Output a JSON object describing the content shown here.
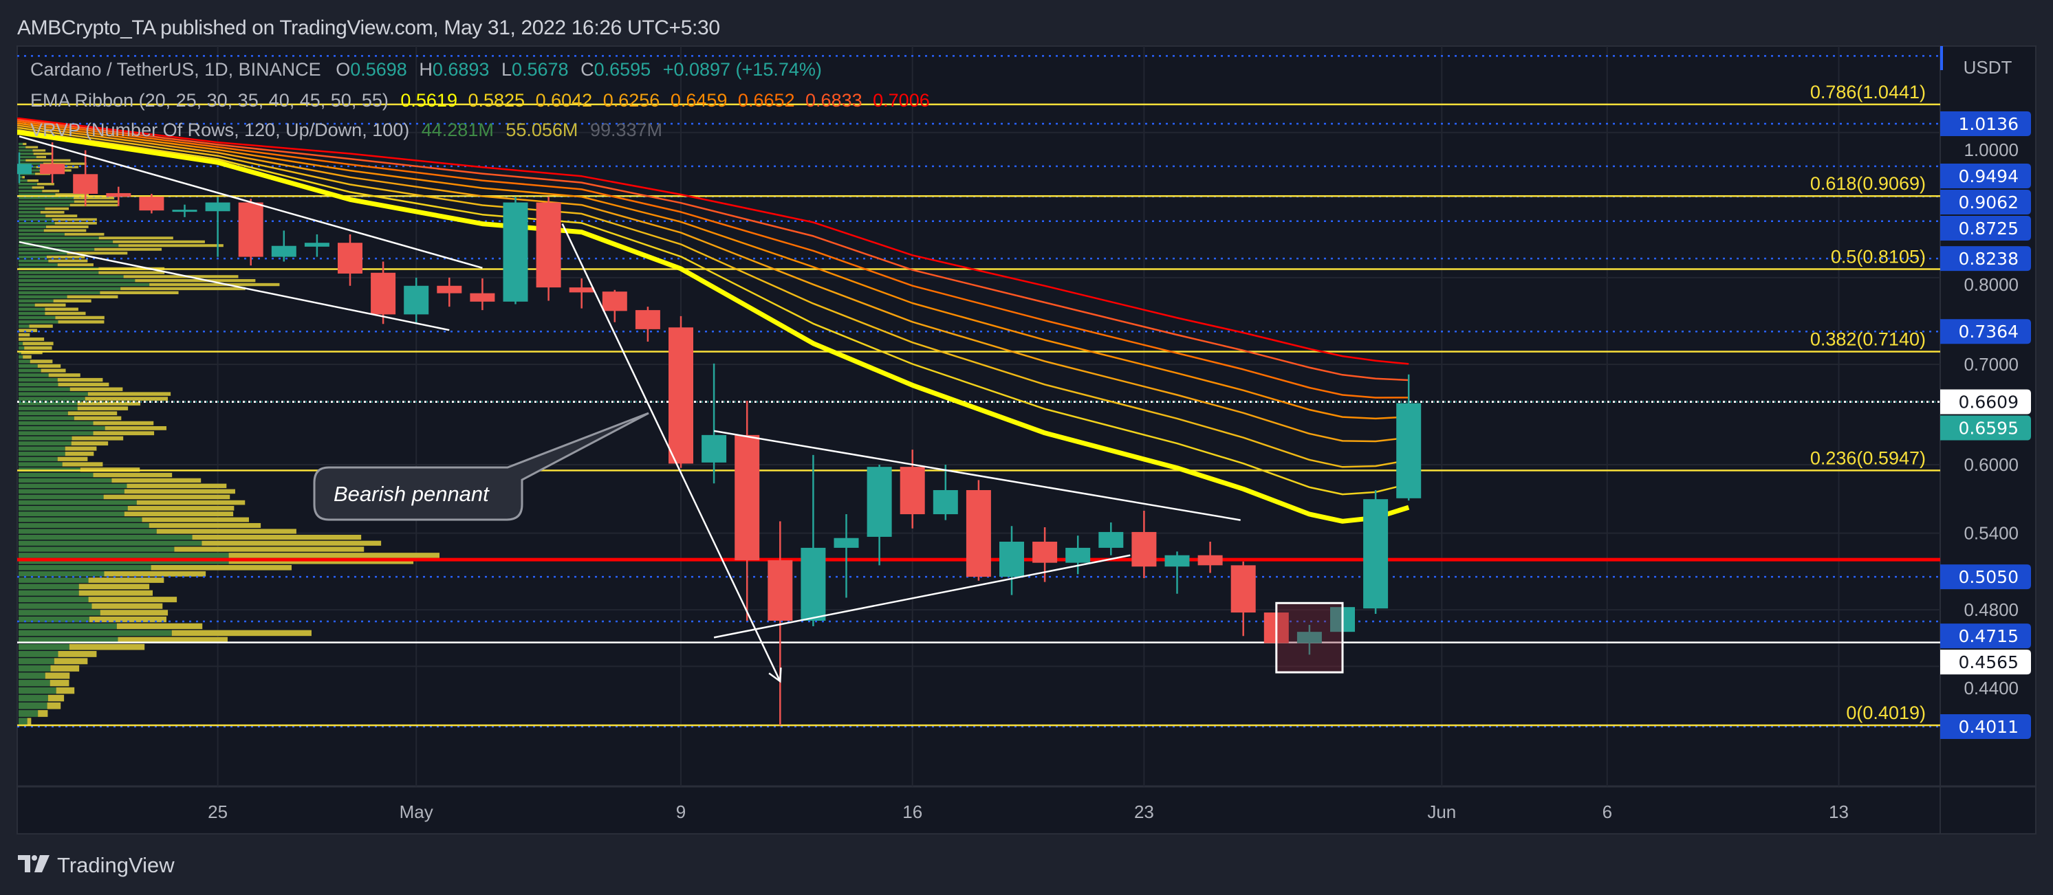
{
  "header": {
    "title": "AMBCrypto_TA published on TradingView.com, May 31, 2022 16:26 UTC+5:30"
  },
  "legend": {
    "symbol": "Cardano / TetherUS, 1D, BINANCE",
    "ohlc": [
      {
        "label": "O",
        "value": "0.5698"
      },
      {
        "label": "H",
        "value": "0.6893"
      },
      {
        "label": "L",
        "value": "0.5678"
      },
      {
        "label": "C",
        "value": "0.6595"
      }
    ],
    "change": "+0.0897 (+15.74%)",
    "ema_title": "EMA Ribbon (20, 25, 30, 35, 40, 45, 50, 55)",
    "ema_values": [
      "0.5619",
      "0.5825",
      "0.6042",
      "0.6256",
      "0.6459",
      "0.6652",
      "0.6833",
      "0.7006"
    ],
    "vrvp_title": "VRVP (Number Of Rows, 120, Up/Down, 100)",
    "vrvp_values": [
      "44.281M",
      "55.056M",
      "99.337M"
    ],
    "vrvp_colors": [
      "#3f8a46",
      "#c9b93c",
      "#5d606b"
    ]
  },
  "price_axis": {
    "currency": "USDT",
    "ticks": [
      "1.0000",
      "0.8000",
      "0.7000",
      "0.6000",
      "0.5400",
      "0.4800",
      "0.4400"
    ],
    "labels": [
      {
        "value": "1.0136",
        "bg": "#1a4bd0",
        "fg": "#ffffff"
      },
      {
        "value": "0.9494",
        "bg": "#1a4bd0",
        "fg": "#ffffff"
      },
      {
        "value": "0.9062",
        "bg": "#1a4bd0",
        "fg": "#ffffff"
      },
      {
        "value": "0.8725",
        "bg": "#1a4bd0",
        "fg": "#ffffff"
      },
      {
        "value": "0.8238",
        "bg": "#1a4bd0",
        "fg": "#ffffff"
      },
      {
        "value": "0.7364",
        "bg": "#1a4bd0",
        "fg": "#ffffff"
      },
      {
        "value": "0.6609",
        "bg": "#ffffff",
        "fg": "#131722"
      },
      {
        "value": "0.6595",
        "bg": "#26a69a",
        "fg": "#ffffff"
      },
      {
        "value": "0.5050",
        "bg": "#1a4bd0",
        "fg": "#ffffff"
      },
      {
        "value": "0.4715",
        "bg": "#1a4bd0",
        "fg": "#ffffff"
      },
      {
        "value": "0.4565",
        "bg": "#ffffff",
        "fg": "#131722"
      },
      {
        "value": "0.4011",
        "bg": "#1a4bd0",
        "fg": "#ffffff"
      }
    ]
  },
  "time_axis": {
    "labels": [
      {
        "text": "25",
        "date": "2022-04-25"
      },
      {
        "text": "May",
        "date": "2022-05-01"
      },
      {
        "text": "9",
        "date": "2022-05-09"
      },
      {
        "text": "16",
        "date": "2022-05-16"
      },
      {
        "text": "23",
        "date": "2022-05-23"
      },
      {
        "text": "Jun",
        "date": "2022-06-01"
      },
      {
        "text": "6",
        "date": "2022-06-06"
      },
      {
        "text": "13",
        "date": "2022-06-13"
      }
    ]
  },
  "footer": {
    "logo_text": "TradingView"
  },
  "colors": {
    "up": "#26a69a",
    "down": "#ef5350",
    "fib": "#f9e03a",
    "level": "#2962ff",
    "support_red": "#ff0000",
    "support_white": "#ffffff",
    "background": "#131722"
  },
  "chart_data": {
    "type": "candlestick",
    "title": "Cardano / TetherUS, 1D, BINANCE",
    "y_scale": "log",
    "ylim": [
      0.39,
      1.16
    ],
    "xlim": [
      "2022-04-18",
      "2022-06-16"
    ],
    "grid": true,
    "candles": [
      {
        "d": "2022-04-19",
        "o": 0.938,
        "h": 0.97,
        "l": 0.925,
        "c": 0.953
      },
      {
        "d": "2022-04-20",
        "o": 0.953,
        "h": 0.985,
        "l": 0.925,
        "c": 0.938
      },
      {
        "d": "2022-04-21",
        "o": 0.938,
        "h": 0.973,
        "l": 0.893,
        "c": 0.91
      },
      {
        "d": "2022-04-22",
        "o": 0.911,
        "h": 0.92,
        "l": 0.893,
        "c": 0.906
      },
      {
        "d": "2022-04-23",
        "o": 0.906,
        "h": 0.91,
        "l": 0.883,
        "c": 0.887
      },
      {
        "d": "2022-04-24",
        "o": 0.886,
        "h": 0.895,
        "l": 0.878,
        "c": 0.888
      },
      {
        "d": "2022-04-25",
        "o": 0.886,
        "h": 0.905,
        "l": 0.826,
        "c": 0.898
      },
      {
        "d": "2022-04-26",
        "o": 0.898,
        "h": 0.903,
        "l": 0.815,
        "c": 0.826
      },
      {
        "d": "2022-04-27",
        "o": 0.826,
        "h": 0.86,
        "l": 0.82,
        "c": 0.84
      },
      {
        "d": "2022-04-28",
        "o": 0.839,
        "h": 0.855,
        "l": 0.826,
        "c": 0.844
      },
      {
        "d": "2022-04-29",
        "o": 0.844,
        "h": 0.855,
        "l": 0.79,
        "c": 0.805
      },
      {
        "d": "2022-04-30",
        "o": 0.806,
        "h": 0.82,
        "l": 0.745,
        "c": 0.756
      },
      {
        "d": "2022-05-01",
        "o": 0.756,
        "h": 0.8,
        "l": 0.745,
        "c": 0.79
      },
      {
        "d": "2022-05-02",
        "o": 0.79,
        "h": 0.8,
        "l": 0.765,
        "c": 0.781
      },
      {
        "d": "2022-05-03",
        "o": 0.781,
        "h": 0.799,
        "l": 0.761,
        "c": 0.771
      },
      {
        "d": "2022-05-04",
        "o": 0.771,
        "h": 0.906,
        "l": 0.768,
        "c": 0.898
      },
      {
        "d": "2022-05-05",
        "o": 0.898,
        "h": 0.906,
        "l": 0.772,
        "c": 0.788
      },
      {
        "d": "2022-05-06",
        "o": 0.788,
        "h": 0.799,
        "l": 0.763,
        "c": 0.782
      },
      {
        "d": "2022-05-07",
        "o": 0.783,
        "h": 0.785,
        "l": 0.747,
        "c": 0.76
      },
      {
        "d": "2022-05-08",
        "o": 0.761,
        "h": 0.765,
        "l": 0.725,
        "c": 0.739
      },
      {
        "d": "2022-05-09",
        "o": 0.741,
        "h": 0.754,
        "l": 0.597,
        "c": 0.601
      },
      {
        "d": "2022-05-10",
        "o": 0.602,
        "h": 0.701,
        "l": 0.583,
        "c": 0.628
      },
      {
        "d": "2022-05-11",
        "o": 0.628,
        "h": 0.662,
        "l": 0.472,
        "c": 0.518
      },
      {
        "d": "2022-05-12",
        "o": 0.518,
        "h": 0.55,
        "l": 0.402,
        "c": 0.472
      },
      {
        "d": "2022-05-13",
        "o": 0.472,
        "h": 0.609,
        "l": 0.468,
        "c": 0.528
      },
      {
        "d": "2022-05-14",
        "o": 0.528,
        "h": 0.556,
        "l": 0.489,
        "c": 0.536
      },
      {
        "d": "2022-05-15",
        "o": 0.537,
        "h": 0.6,
        "l": 0.514,
        "c": 0.598
      },
      {
        "d": "2022-05-16",
        "o": 0.598,
        "h": 0.614,
        "l": 0.544,
        "c": 0.556
      },
      {
        "d": "2022-05-17",
        "o": 0.556,
        "h": 0.6,
        "l": 0.551,
        "c": 0.577
      },
      {
        "d": "2022-05-18",
        "o": 0.577,
        "h": 0.586,
        "l": 0.502,
        "c": 0.505
      },
      {
        "d": "2022-05-19",
        "o": 0.505,
        "h": 0.546,
        "l": 0.491,
        "c": 0.533
      },
      {
        "d": "2022-05-20",
        "o": 0.533,
        "h": 0.545,
        "l": 0.501,
        "c": 0.516
      },
      {
        "d": "2022-05-21",
        "o": 0.516,
        "h": 0.538,
        "l": 0.507,
        "c": 0.528
      },
      {
        "d": "2022-05-22",
        "o": 0.528,
        "h": 0.549,
        "l": 0.522,
        "c": 0.541
      },
      {
        "d": "2022-05-23",
        "o": 0.541,
        "h": 0.559,
        "l": 0.504,
        "c": 0.513
      },
      {
        "d": "2022-05-24",
        "o": 0.513,
        "h": 0.525,
        "l": 0.492,
        "c": 0.522
      },
      {
        "d": "2022-05-25",
        "o": 0.522,
        "h": 0.533,
        "l": 0.508,
        "c": 0.514
      },
      {
        "d": "2022-05-26",
        "o": 0.514,
        "h": 0.517,
        "l": 0.461,
        "c": 0.478
      },
      {
        "d": "2022-05-27",
        "o": 0.478,
        "h": 0.483,
        "l": 0.445,
        "c": 0.456
      },
      {
        "d": "2022-05-28",
        "o": 0.456,
        "h": 0.469,
        "l": 0.448,
        "c": 0.464
      },
      {
        "d": "2022-05-29",
        "o": 0.464,
        "h": 0.482,
        "l": 0.456,
        "c": 0.482
      },
      {
        "d": "2022-05-30",
        "o": 0.481,
        "h": 0.577,
        "l": 0.477,
        "c": 0.569
      },
      {
        "d": "2022-05-31",
        "o": 0.5698,
        "h": 0.6893,
        "l": 0.5678,
        "c": 0.6595
      }
    ],
    "ema_ribbon": {
      "periods": [
        20,
        25,
        30,
        35,
        40,
        45,
        50,
        55
      ],
      "last_values": [
        0.5619,
        0.5825,
        0.6042,
        0.6256,
        0.6459,
        0.6652,
        0.6833,
        0.7006
      ],
      "colors": [
        "#ffff00",
        "#f2d21c",
        "#f0b916",
        "#f5a10e",
        "#fb8c00",
        "#ff6f00",
        "#ff5722",
        "#ff0000"
      ],
      "sample_dates": [
        "2022-04-19",
        "2022-04-25",
        "2022-04-29",
        "2022-05-03",
        "2022-05-06",
        "2022-05-09",
        "2022-05-13",
        "2022-05-16",
        "2022-05-20",
        "2022-05-24",
        "2022-05-26",
        "2022-05-28",
        "2022-05-29",
        "2022-05-30",
        "2022-05-31"
      ],
      "ema20": [
        1.0,
        0.955,
        0.902,
        0.869,
        0.858,
        0.811,
        0.723,
        0.678,
        0.63,
        0.597,
        0.578,
        0.556,
        0.55,
        0.553,
        0.5619
      ],
      "ema55": [
        1.022,
        0.985,
        0.968,
        0.948,
        0.935,
        0.909,
        0.871,
        0.828,
        0.79,
        0.752,
        0.735,
        0.717,
        0.709,
        0.704,
        0.7006
      ]
    },
    "volume_profile": {
      "rows": 120,
      "price_range": [
        0.4019,
        0.985
      ],
      "up_color": "#38773e",
      "down_color": "#c3b437",
      "up": [
        3.1,
        6.9,
        10.2,
        10.5,
        13.4,
        11.2,
        9.5,
        11.4,
        12.7,
        14.1,
        18.1,
        35.4,
        54.6,
        35,
        25.2,
        29.1,
        26.1,
        24.9,
        21.5,
        21.5,
        24.9,
        30.5,
        47.2,
        74.9,
        74.9,
        55.5,
        65.3,
        61.9,
        49.2,
        46.5,
        44,
        37.7,
        38.9,
        42.1,
        30.3,
        37.7,
        38.6,
        33.2,
        26.6,
        22,
        15.6,
        13.9,
        16.6,
        16.6,
        18.8,
        19,
        26.6,
        30.8,
        26.6,
        19.8,
        17.6,
        21,
        21,
        23.7,
        24.7,
        18.3,
        14.1,
        13.9,
        10.7,
        8,
        6.8,
        4.1,
        1.5,
        0.9,
        2,
        1.5,
        0,
        0,
        0,
        3.8,
        14.1,
        13.1,
        9.4,
        9.4,
        5.8,
        12.4,
        17.3,
        29,
        36.3,
        46.6,
        41.5,
        37.4,
        28.5,
        28.5,
        13.9,
        10.6,
        10,
        17.3,
        27,
        35.6,
        33.6,
        28.6,
        16.4,
        9,
        9.8,
        12.9,
        11.9,
        9.6,
        7.8,
        9.4,
        18.3,
        19.8,
        19.6,
        13.1,
        8.4,
        4.8,
        6.6,
        3.1,
        1.3,
        5.9,
        7.5,
        6.3,
        8.8,
        2.5,
        6.3,
        5.3,
        5,
        2.5,
        1.5
      ],
      "down": [
        1.4,
        3.5,
        4.8,
        5.7,
        6.5,
        6.8,
        8.7,
        10.2,
        11.9,
        13.7,
        26.8,
        39.1,
        49.8,
        30.5,
        27.5,
        24.1,
        25.2,
        31.5,
        26.3,
        25.1,
        26.9,
        36.2,
        50.1,
        65.8,
        75.1,
        67.6,
        63.9,
        60.2,
        49.8,
        39.8,
        38.1,
        38.8,
        37.9,
        38.6,
        45,
        39.5,
        35.5,
        31.8,
        28.1,
        21.2,
        14.4,
        10.7,
        10.2,
        11.2,
        13.1,
        18.3,
        21.7,
        21.9,
        21.5,
        16.8,
        17.5,
        18,
        22.4,
        29.5,
        29.5,
        18.8,
        18.1,
        16.1,
        11.3,
        8.8,
        8.2,
        8,
        3.1,
        7.6,
        9.9,
        10.9,
        9.1,
        4,
        6.6,
        8.4,
        16.4,
        17.5,
        14.5,
        11.9,
        11,
        13.5,
        18.1,
        28,
        44.5,
        46.4,
        42.9,
        40.9,
        23.5,
        23.5,
        12.8,
        14,
        13.6,
        21.5,
        24,
        37.4,
        32.8,
        26.5,
        14.1,
        15.1,
        15.1,
        15,
        16,
        11.3,
        8.5,
        8.5,
        17,
        15.5,
        14.5,
        11.9,
        6.1,
        4.3,
        6.1,
        4,
        0.9,
        5.4,
        11.3,
        15,
        15.4,
        16,
        3.5,
        7,
        4.6,
        4.4,
        1.3
      ]
    },
    "fibonacci": [
      {
        "ratio": "0.786",
        "price": 1.0441,
        "label": "0.786(1.0441)"
      },
      {
        "ratio": "0.618",
        "price": 0.9069,
        "label": "0.618(0.9069)"
      },
      {
        "ratio": "0.5",
        "price": 0.8105,
        "label": "0.5(0.8105)"
      },
      {
        "ratio": "0.382",
        "price": 0.714,
        "label": "0.382(0.7140)"
      },
      {
        "ratio": "0.236",
        "price": 0.5947,
        "label": "0.236(0.5947)"
      },
      {
        "ratio": "0",
        "price": 0.4019,
        "label": "0(0.4019)"
      }
    ],
    "dotted_levels": [
      1.125,
      1.0136,
      0.9494,
      0.9062,
      0.8725,
      0.8238,
      0.7364,
      0.505,
      0.4715,
      0.4011
    ],
    "last_price_lines": [
      0.6609,
      0.6595
    ],
    "support_lines": [
      {
        "price": 0.5185,
        "color": "#ff0000"
      },
      {
        "price": 0.4565,
        "color": "#ffffff"
      }
    ],
    "trendlines": [
      {
        "from": [
          "2022-04-19",
          0.994
        ],
        "to": [
          "2022-05-03",
          0.812
        ]
      },
      {
        "from": [
          "2022-04-19",
          0.845
        ],
        "to": [
          "2022-05-02",
          0.738
        ]
      },
      {
        "from": [
          "2022-05-05T10:00:00Z",
          0.869
        ],
        "to": [
          "2022-05-12",
          0.43
        ],
        "arrow": true
      },
      {
        "from": [
          "2022-05-10",
          0.632
        ],
        "to": [
          "2022-05-25T22:00:00Z",
          0.551
        ]
      },
      {
        "from": [
          "2022-05-10",
          0.46
        ],
        "to": [
          "2022-05-22T14:00:00Z",
          0.522
        ]
      }
    ],
    "highlight_box": {
      "from": "2022-05-27",
      "to": "2022-05-29",
      "top": 0.485,
      "bottom": 0.436
    },
    "annotations": [
      {
        "text": "Bearish pennant"
      }
    ]
  }
}
